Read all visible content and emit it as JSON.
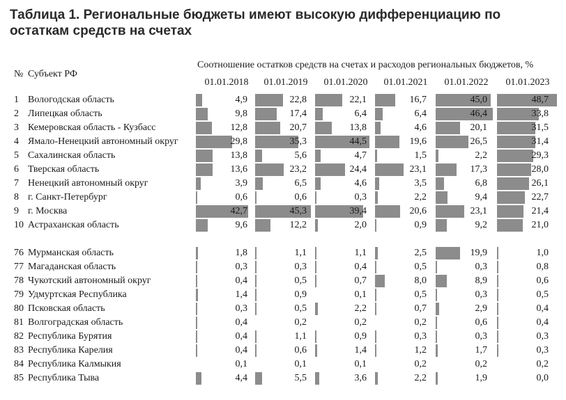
{
  "title": "Таблица 1. Региональные бюджеты имеют высокую дифференциацию по остаткам средств на счетах",
  "header": {
    "num_label": "№",
    "subject_label": "Субъект РФ",
    "subtitle": "Соотношение остатков средств на счетах и расходов региональных бюджетов, %"
  },
  "chart_data": {
    "type": "table",
    "title": "Таблица 1. Региональные бюджеты имеют высокую дифференциацию по остаткам средств на счетах",
    "columns": [
      "01.01.2018",
      "01.01.2019",
      "01.01.2020",
      "01.01.2021",
      "01.01.2022",
      "01.01.2023"
    ],
    "bar_scale_max": 50,
    "bar_color": "#8c8c8c",
    "groups": [
      {
        "rows": [
          {
            "n": "1",
            "name": "Вологодская область",
            "values": [
              4.9,
              22.8,
              22.1,
              16.7,
              45.0,
              48.7
            ]
          },
          {
            "n": "2",
            "name": "Липецкая область",
            "values": [
              9.8,
              17.4,
              6.4,
              6.4,
              46.4,
              33.8
            ]
          },
          {
            "n": "3",
            "name": "Кемеровская область - Кузбасс",
            "values": [
              12.8,
              20.7,
              13.8,
              4.6,
              20.1,
              31.5
            ]
          },
          {
            "n": "4",
            "name": "Ямало-Ненецкий автономный округ",
            "values": [
              29.8,
              35.3,
              44.5,
              19.6,
              26.5,
              31.4
            ]
          },
          {
            "n": "5",
            "name": "Сахалинская область",
            "values": [
              13.8,
              5.6,
              4.7,
              1.5,
              2.2,
              29.3
            ]
          },
          {
            "n": "6",
            "name": "Тверская область",
            "values": [
              13.6,
              23.2,
              24.4,
              23.1,
              17.3,
              28.0
            ]
          },
          {
            "n": "7",
            "name": "Ненецкий автономный округ",
            "values": [
              3.9,
              6.5,
              4.6,
              3.5,
              6.8,
              26.1
            ]
          },
          {
            "n": "8",
            "name": "г. Санкт-Петербург",
            "values": [
              0.6,
              0.6,
              0.3,
              2.2,
              9.4,
              22.7
            ]
          },
          {
            "n": "9",
            "name": "г. Москва",
            "values": [
              42.7,
              45.3,
              39.4,
              20.6,
              23.1,
              21.4
            ]
          },
          {
            "n": "10",
            "name": "Астраханская область",
            "values": [
              9.6,
              12.2,
              2.0,
              0.9,
              9.2,
              21.0
            ]
          }
        ]
      },
      {
        "rows": [
          {
            "n": "76",
            "name": "Мурманская область",
            "values": [
              1.8,
              1.1,
              1.1,
              2.5,
              19.9,
              1.0
            ]
          },
          {
            "n": "77",
            "name": "Магаданская область",
            "values": [
              0.3,
              0.3,
              0.4,
              0.5,
              0.3,
              0.8
            ]
          },
          {
            "n": "78",
            "name": "Чукотский автономный округ",
            "values": [
              0.4,
              0.5,
              0.7,
              8.0,
              8.9,
              0.6
            ]
          },
          {
            "n": "79",
            "name": "Удмуртская Республика",
            "values": [
              1.4,
              0.9,
              0.1,
              0.5,
              0.3,
              0.5
            ]
          },
          {
            "n": "80",
            "name": "Псковская область",
            "values": [
              0.3,
              0.5,
              2.2,
              0.7,
              2.9,
              0.4
            ]
          },
          {
            "n": "81",
            "name": "Волгоградская область",
            "values": [
              0.4,
              0.2,
              0.2,
              0.2,
              0.6,
              0.4
            ]
          },
          {
            "n": "82",
            "name": "Республика Бурятия",
            "values": [
              0.4,
              1.1,
              0.9,
              0.3,
              0.3,
              0.3
            ]
          },
          {
            "n": "83",
            "name": "Республика Карелия",
            "values": [
              0.4,
              0.6,
              1.4,
              1.2,
              1.7,
              0.3
            ]
          },
          {
            "n": "84",
            "name": "Республика Калмыкия",
            "values": [
              0.1,
              0.1,
              0.1,
              0.2,
              0.2,
              0.2
            ]
          },
          {
            "n": "85",
            "name": "Республика Тыва",
            "values": [
              4.4,
              5.5,
              3.6,
              2.2,
              1.9,
              0.0
            ]
          }
        ]
      }
    ]
  }
}
